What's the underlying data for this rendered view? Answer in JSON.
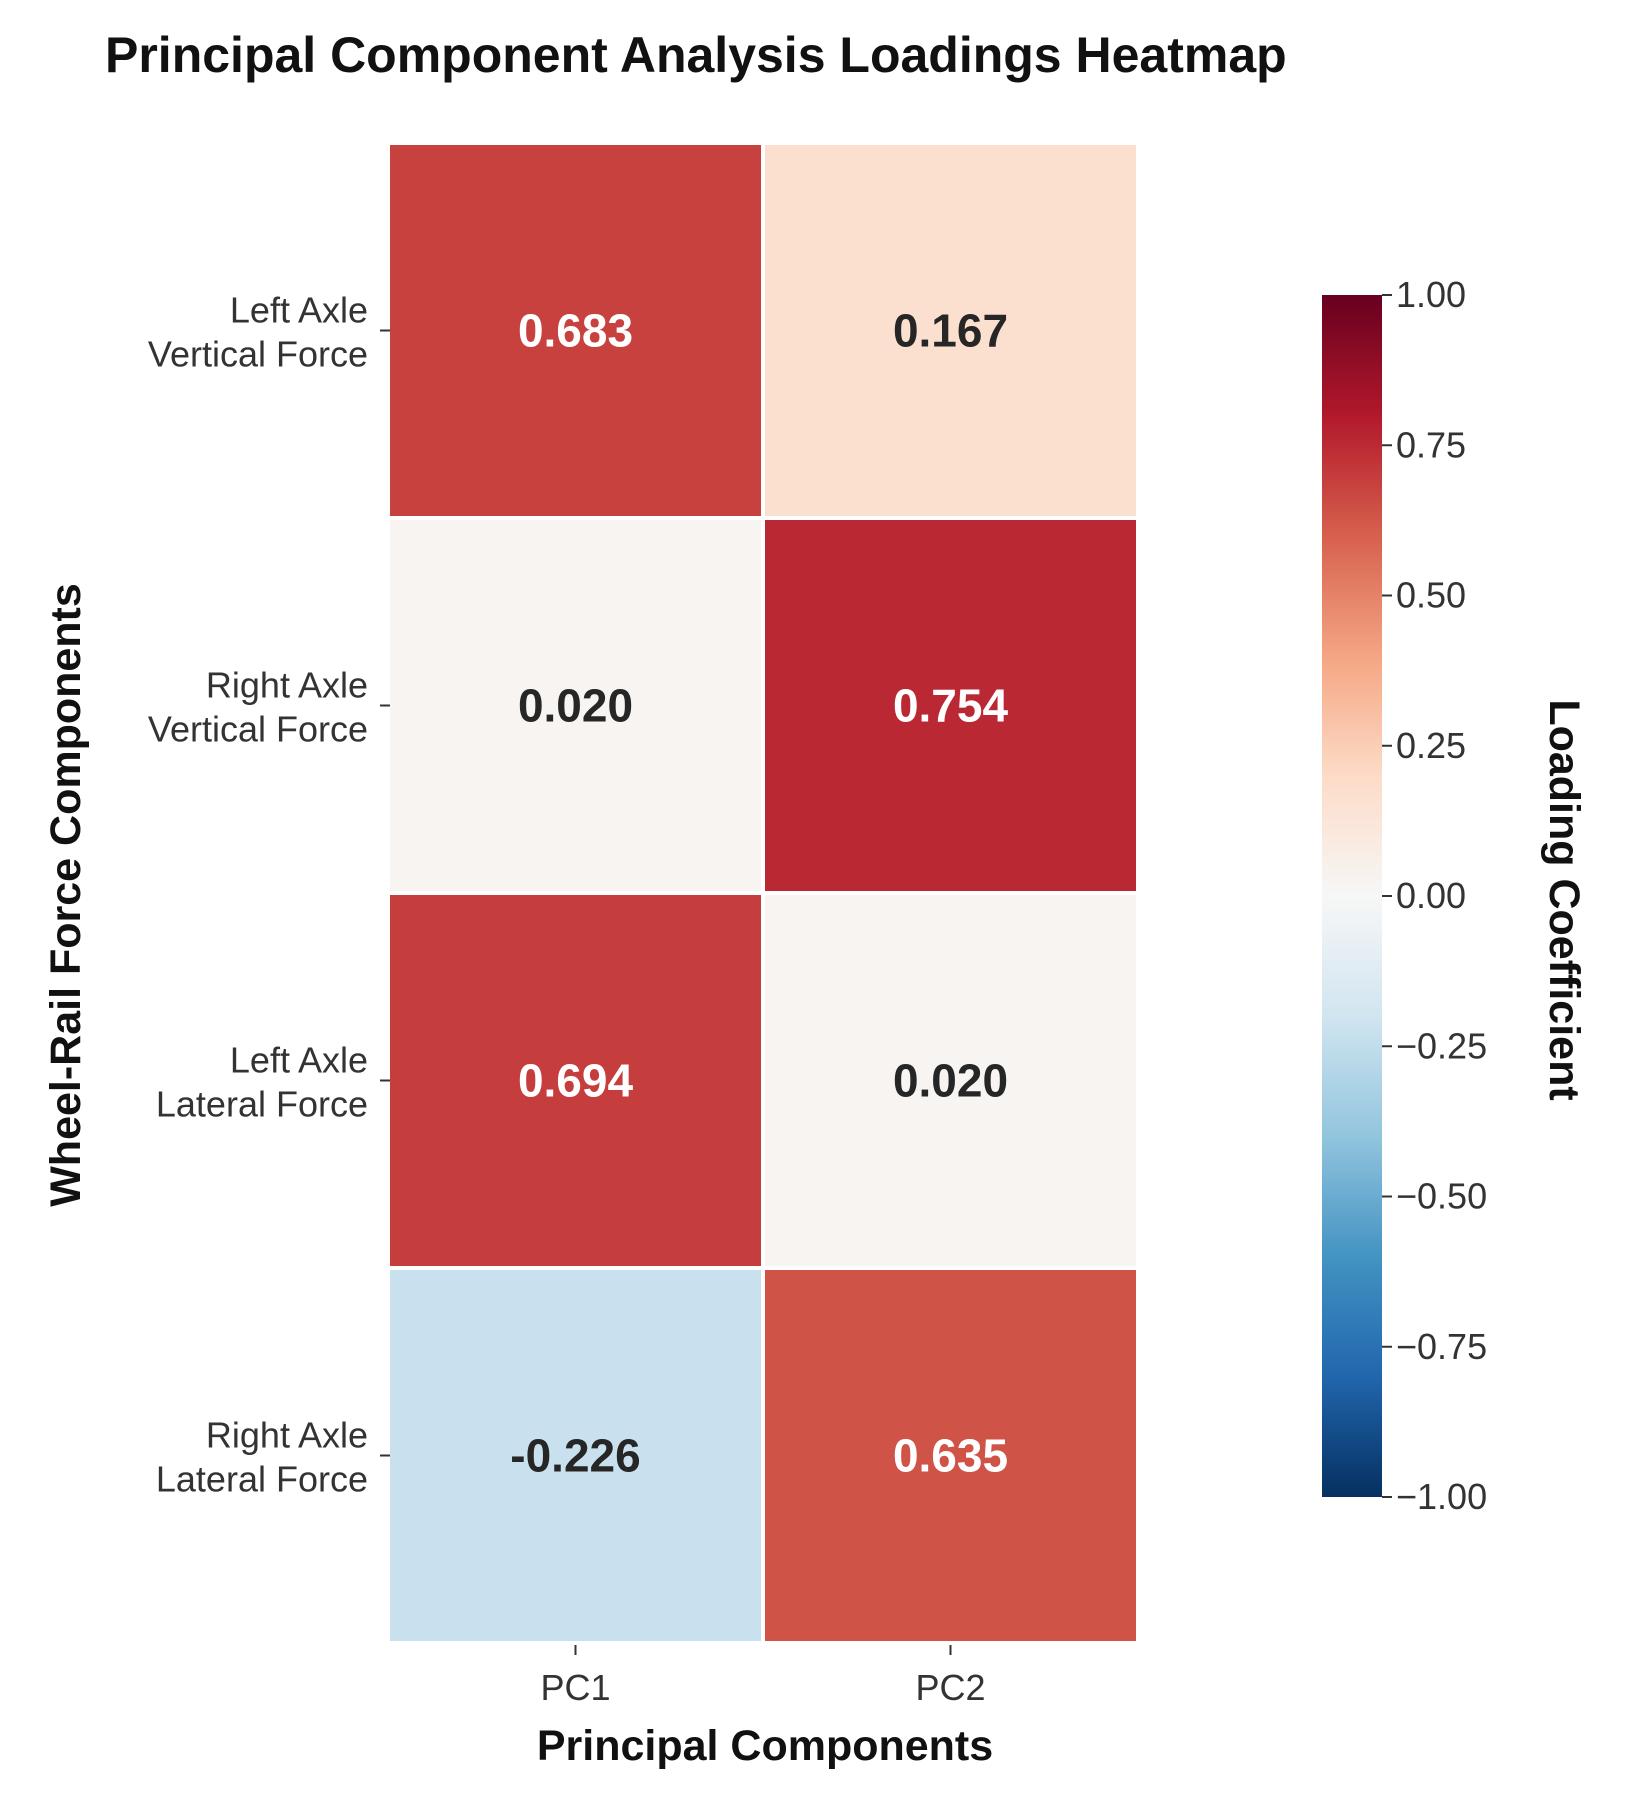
{
  "chart_data": {
    "type": "heatmap",
    "title": "Principal Component Analysis Loadings Heatmap",
    "xlabel": "Principal Components",
    "ylabel": "Wheel-Rail Force Components",
    "x_categories": [
      "PC1",
      "PC2"
    ],
    "y_categories": [
      [
        "Left Axle",
        "Vertical Force"
      ],
      [
        "Right Axle",
        "Vertical Force"
      ],
      [
        "Left Axle",
        "Lateral Force"
      ],
      [
        "Right Axle",
        "Lateral Force"
      ]
    ],
    "values": [
      [
        0.683,
        0.167
      ],
      [
        0.02,
        0.754
      ],
      [
        0.694,
        0.02
      ],
      [
        -0.226,
        0.635
      ]
    ],
    "value_labels": [
      [
        "0.683",
        "0.167"
      ],
      [
        "0.020",
        "0.754"
      ],
      [
        "0.694",
        "0.020"
      ],
      [
        "-0.226",
        "0.635"
      ]
    ],
    "colorbar": {
      "label": "Loading Coefficient",
      "range": [
        -1.0,
        1.0
      ],
      "ticks": [
        "1.00",
        "0.75",
        "0.50",
        "0.25",
        "0.00",
        "−0.25",
        "−0.50",
        "−0.75",
        "−1.00"
      ],
      "tick_values": [
        1.0,
        0.75,
        0.5,
        0.25,
        0.0,
        -0.25,
        -0.5,
        -0.75,
        -1.0
      ],
      "colormap": "RdBu_r",
      "colors": [
        "#053061",
        "#2166ac",
        "#4393c3",
        "#92c5de",
        "#d1e5f0",
        "#f7f7f7",
        "#fddbc7",
        "#f4a582",
        "#d6604d",
        "#b2182b",
        "#67001f"
      ]
    },
    "legend": "colorbar-right"
  }
}
